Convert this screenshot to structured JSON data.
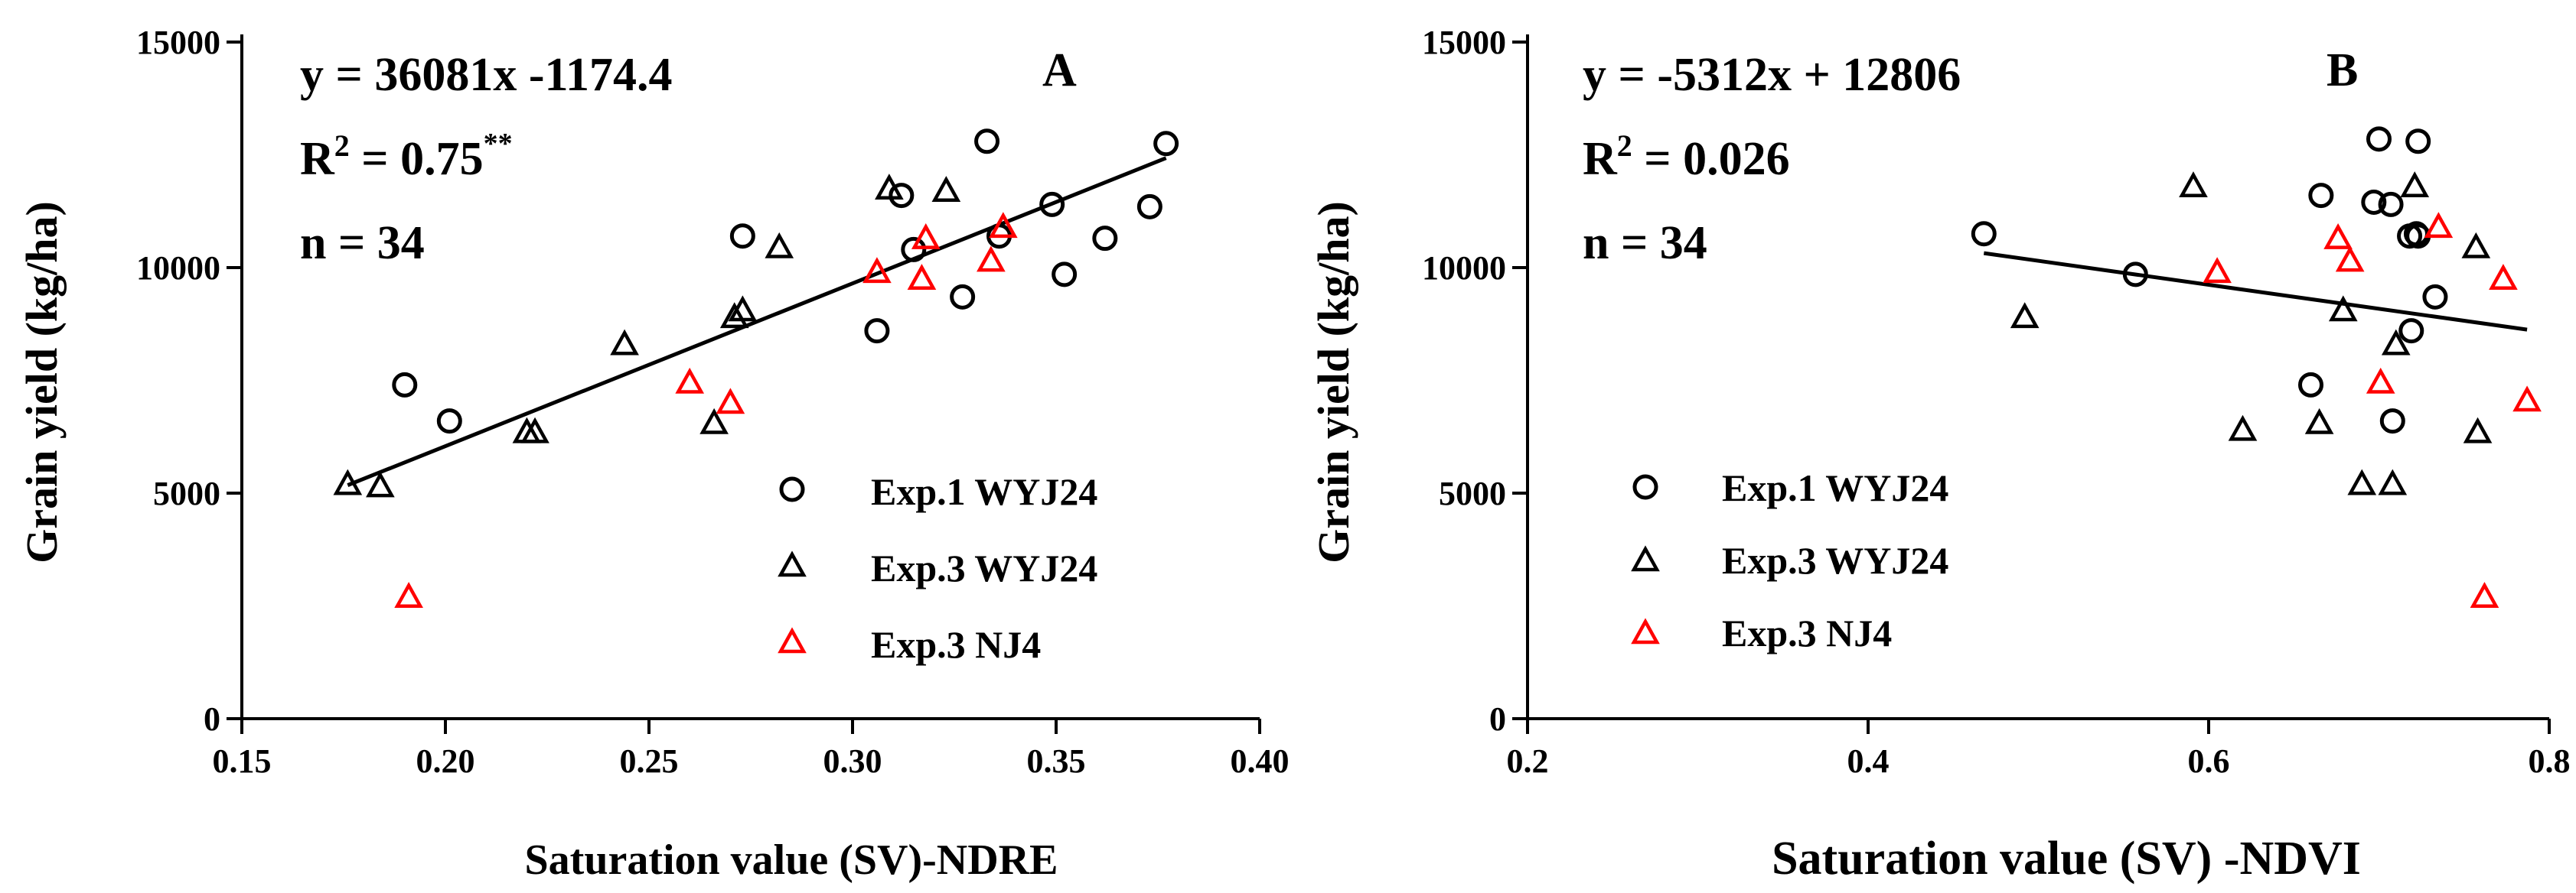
{
  "chart_data": [
    {
      "panel": "A",
      "type": "scatter",
      "xlabel": "Saturation value (SV)-NDRE",
      "ylabel": "Grain yield (kg/ha)",
      "xlim": [
        0.15,
        0.4
      ],
      "ylim": [
        0,
        15000
      ],
      "xticks": [
        "0.15",
        "0.20",
        "0.25",
        "0.30",
        "0.35",
        "0.40"
      ],
      "yticks": [
        "0",
        "5000",
        "10000",
        "15000"
      ],
      "equation": "y = 36081x -1174.4",
      "r2_text": "R",
      "r2_sup": "2",
      "r2_value": " = 0.75",
      "r2_sig": "**",
      "n_text": "n = 34",
      "fit": {
        "slope": 36081,
        "intercept": -1174.4,
        "x_range": [
          0.176,
          0.377
        ]
      },
      "legend": [
        "Exp.1 WYJ24",
        "Exp.3 WYJ24",
        "Exp.3 NJ4"
      ],
      "series": [
        {
          "name": "Exp.1 WYJ24",
          "marker": "circle",
          "color": "#000000",
          "points": [
            [
              0.19,
              7400
            ],
            [
              0.201,
              6600
            ],
            [
              0.273,
              10700
            ],
            [
              0.306,
              8600
            ],
            [
              0.312,
              11600
            ],
            [
              0.315,
              10400
            ],
            [
              0.327,
              9350
            ],
            [
              0.333,
              12800
            ],
            [
              0.336,
              10700
            ],
            [
              0.349,
              11400
            ],
            [
              0.352,
              9850
            ],
            [
              0.362,
              10650
            ],
            [
              0.373,
              11350
            ],
            [
              0.377,
              12750
            ]
          ]
        },
        {
          "name": "Exp.3 WYJ24",
          "marker": "triangle",
          "color": "#000000",
          "points": [
            [
              0.176,
              5200
            ],
            [
              0.184,
              5150
            ],
            [
              0.22,
              6350
            ],
            [
              0.222,
              6350
            ],
            [
              0.244,
              8300
            ],
            [
              0.266,
              6550
            ],
            [
              0.271,
              8900
            ],
            [
              0.273,
              9050
            ],
            [
              0.282,
              10450
            ],
            [
              0.309,
              11750
            ],
            [
              0.323,
              11700
            ]
          ]
        },
        {
          "name": "Exp.3 NJ4",
          "marker": "triangle",
          "color": "#ff0000",
          "points": [
            [
              0.191,
              2700
            ],
            [
              0.26,
              7450
            ],
            [
              0.27,
              7000
            ],
            [
              0.306,
              9900
            ],
            [
              0.317,
              9750
            ],
            [
              0.318,
              10650
            ],
            [
              0.334,
              10150
            ],
            [
              0.337,
              10900
            ]
          ]
        }
      ]
    },
    {
      "panel": "B",
      "type": "scatter",
      "xlabel": "Saturation value (SV) -NDVI",
      "ylabel": "Grain yield (kg/ha)",
      "xlim": [
        0.2,
        0.8
      ],
      "ylim": [
        0,
        15000
      ],
      "xticks": [
        "0.2",
        "0.4",
        "0.6",
        "0.8"
      ],
      "yticks": [
        "0",
        "5000",
        "10000",
        "15000"
      ],
      "equation": "y = -5312x + 12806",
      "r2_text": "R",
      "r2_sup": "2",
      "r2_value": " = 0.026",
      "n_text": "n = 34",
      "fit": {
        "slope": -5312,
        "intercept": 12806,
        "x_range": [
          0.468,
          0.787
        ]
      },
      "legend": [
        "Exp.1 WYJ24",
        "Exp.3 WYJ24",
        "Exp.3 NJ4"
      ],
      "series": [
        {
          "name": "Exp.1 WYJ24",
          "marker": "circle",
          "color": "#000000",
          "points": [
            [
              0.468,
              10750
            ],
            [
              0.557,
              9850
            ],
            [
              0.66,
              7400
            ],
            [
              0.666,
              11600
            ],
            [
              0.697,
              11450
            ],
            [
              0.7,
              12850
            ],
            [
              0.707,
              11400
            ],
            [
              0.708,
              6600
            ],
            [
              0.718,
              10700
            ],
            [
              0.719,
              8600
            ],
            [
              0.722,
              10750
            ],
            [
              0.723,
              10700
            ],
            [
              0.723,
              12800
            ],
            [
              0.733,
              9350
            ]
          ]
        },
        {
          "name": "Exp.3 WYJ24",
          "marker": "triangle",
          "color": "#000000",
          "points": [
            [
              0.492,
              8900
            ],
            [
              0.591,
              11800
            ],
            [
              0.62,
              6400
            ],
            [
              0.665,
              6550
            ],
            [
              0.679,
              9050
            ],
            [
              0.69,
              5200
            ],
            [
              0.708,
              5200
            ],
            [
              0.71,
              8300
            ],
            [
              0.721,
              11800
            ],
            [
              0.757,
              10450
            ],
            [
              0.758,
              6350
            ]
          ]
        },
        {
          "name": "Exp.3 NJ4",
          "marker": "triangle",
          "color": "#ff0000",
          "points": [
            [
              0.605,
              9900
            ],
            [
              0.676,
              10650
            ],
            [
              0.683,
              10150
            ],
            [
              0.701,
              7450
            ],
            [
              0.735,
              10900
            ],
            [
              0.762,
              2700
            ],
            [
              0.773,
              9750
            ],
            [
              0.787,
              7050
            ]
          ]
        }
      ]
    }
  ]
}
